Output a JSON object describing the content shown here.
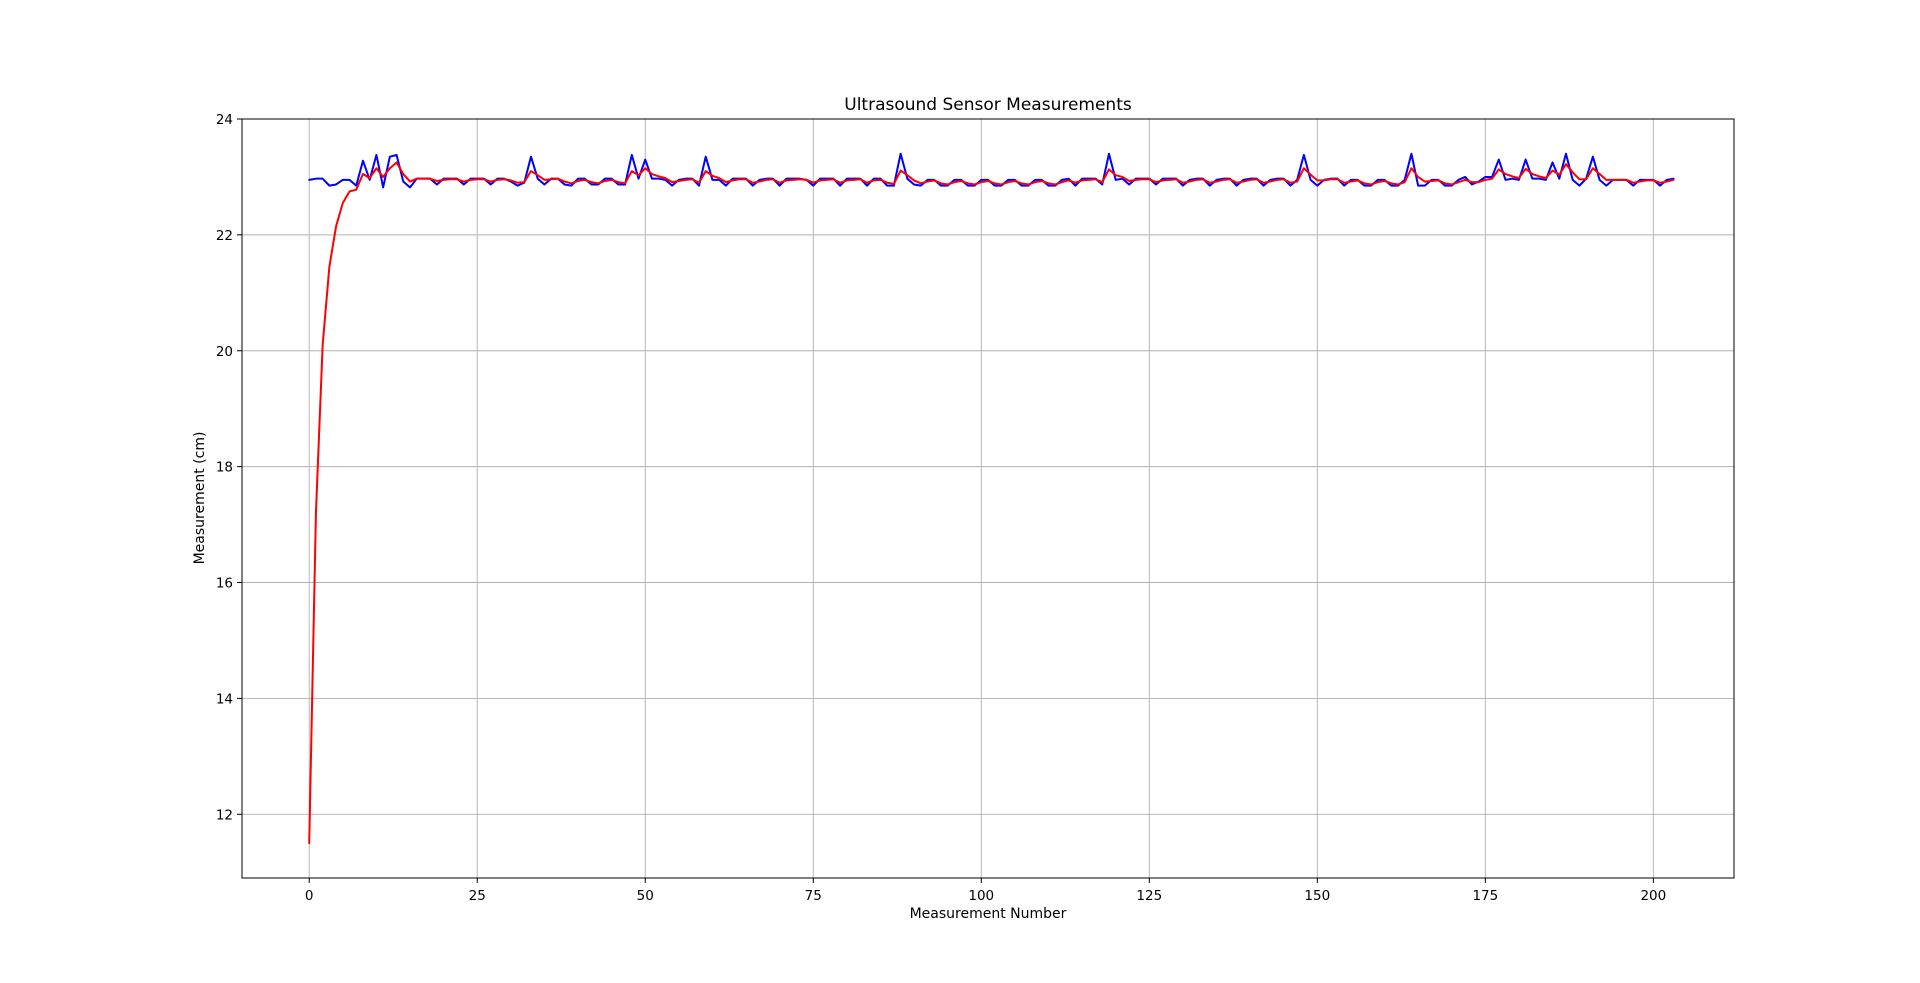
{
  "chart_data": {
    "type": "line",
    "title": "Ultrasound Sensor Measurements",
    "xlabel": "Measurement Number",
    "ylabel": "Measurement (cm)",
    "xlim": [
      -10,
      212
    ],
    "ylim": [
      10.9,
      24
    ],
    "xticks": [
      0,
      25,
      50,
      75,
      100,
      125,
      150,
      175,
      200
    ],
    "yticks": [
      12,
      14,
      16,
      18,
      20,
      22,
      24
    ],
    "grid": true,
    "legend": "none",
    "x_start": 0,
    "series": [
      {
        "color": "#0000ff",
        "values": [
          22.95,
          22.97,
          22.97,
          22.85,
          22.87,
          22.95,
          22.95,
          22.85,
          23.28,
          22.95,
          23.38,
          22.82,
          23.35,
          23.38,
          22.92,
          22.82,
          22.97,
          22.97,
          22.97,
          22.87,
          22.97,
          22.97,
          22.97,
          22.87,
          22.97,
          22.97,
          22.97,
          22.87,
          22.97,
          22.97,
          22.92,
          22.85,
          22.9,
          23.35,
          22.97,
          22.87,
          22.97,
          22.97,
          22.87,
          22.85,
          22.97,
          22.97,
          22.87,
          22.87,
          22.97,
          22.97,
          22.87,
          22.87,
          23.38,
          22.97,
          23.3,
          22.97,
          22.97,
          22.95,
          22.85,
          22.95,
          22.97,
          22.97,
          22.85,
          23.35,
          22.95,
          22.95,
          22.85,
          22.97,
          22.97,
          22.97,
          22.85,
          22.95,
          22.97,
          22.97,
          22.85,
          22.97,
          22.97,
          22.97,
          22.95,
          22.85,
          22.97,
          22.97,
          22.97,
          22.85,
          22.97,
          22.97,
          22.97,
          22.85,
          22.97,
          22.97,
          22.85,
          22.85,
          23.4,
          22.97,
          22.87,
          22.85,
          22.95,
          22.95,
          22.85,
          22.85,
          22.95,
          22.95,
          22.85,
          22.85,
          22.95,
          22.95,
          22.85,
          22.85,
          22.95,
          22.95,
          22.85,
          22.85,
          22.95,
          22.95,
          22.85,
          22.85,
          22.95,
          22.97,
          22.85,
          22.97,
          22.97,
          22.97,
          22.87,
          23.4,
          22.95,
          22.97,
          22.87,
          22.97,
          22.97,
          22.97,
          22.87,
          22.97,
          22.97,
          22.97,
          22.85,
          22.95,
          22.97,
          22.97,
          22.85,
          22.95,
          22.97,
          22.97,
          22.85,
          22.95,
          22.97,
          22.97,
          22.85,
          22.95,
          22.97,
          22.97,
          22.85,
          22.95,
          23.38,
          22.95,
          22.85,
          22.95,
          22.97,
          22.97,
          22.85,
          22.95,
          22.95,
          22.85,
          22.85,
          22.95,
          22.95,
          22.85,
          22.85,
          22.95,
          23.4,
          22.85,
          22.85,
          22.95,
          22.95,
          22.85,
          22.85,
          22.95,
          23.0,
          22.87,
          22.92,
          23.0,
          23.0,
          23.3,
          22.95,
          22.97,
          22.95,
          23.3,
          22.97,
          22.97,
          22.95,
          23.25,
          22.97,
          23.4,
          22.95,
          22.85,
          22.97,
          23.35,
          22.95,
          22.85,
          22.95,
          22.95,
          22.95,
          22.85,
          22.95,
          22.95,
          22.95,
          22.85,
          22.95,
          22.97
        ]
      },
      {
        "color": "#ff0000",
        "values": [
          11.5,
          17.2,
          20.1,
          21.45,
          22.15,
          22.55,
          22.75,
          22.78,
          23.05,
          22.98,
          23.15,
          23.0,
          23.15,
          23.25,
          23.05,
          22.92,
          22.97,
          22.97,
          22.97,
          22.93,
          22.95,
          22.96,
          22.96,
          22.92,
          22.95,
          22.96,
          22.96,
          22.92,
          22.95,
          22.96,
          22.94,
          22.9,
          22.91,
          23.1,
          23.03,
          22.95,
          22.96,
          22.97,
          22.92,
          22.89,
          22.93,
          22.95,
          22.91,
          22.89,
          22.93,
          22.95,
          22.91,
          22.89,
          23.1,
          23.03,
          23.15,
          23.05,
          23.01,
          22.98,
          22.91,
          22.93,
          22.95,
          22.96,
          22.9,
          23.1,
          23.02,
          22.98,
          22.91,
          22.94,
          22.96,
          22.96,
          22.9,
          22.92,
          22.95,
          22.96,
          22.9,
          22.94,
          22.95,
          22.96,
          22.95,
          22.9,
          22.94,
          22.95,
          22.96,
          22.9,
          22.94,
          22.95,
          22.96,
          22.9,
          22.94,
          22.95,
          22.9,
          22.88,
          23.11,
          23.03,
          22.94,
          22.89,
          22.92,
          22.94,
          22.89,
          22.87,
          22.91,
          22.93,
          22.89,
          22.87,
          22.91,
          22.93,
          22.89,
          22.87,
          22.91,
          22.93,
          22.89,
          22.87,
          22.91,
          22.93,
          22.89,
          22.87,
          22.91,
          22.94,
          22.9,
          22.94,
          22.95,
          22.96,
          22.91,
          23.13,
          23.03,
          23.0,
          22.93,
          22.95,
          22.96,
          22.96,
          22.91,
          22.94,
          22.95,
          22.96,
          22.9,
          22.92,
          22.95,
          22.96,
          22.9,
          22.92,
          22.95,
          22.96,
          22.9,
          22.92,
          22.95,
          22.96,
          22.9,
          22.92,
          22.95,
          22.96,
          22.9,
          22.92,
          23.15,
          23.04,
          22.94,
          22.94,
          22.96,
          22.96,
          22.9,
          22.92,
          22.94,
          22.89,
          22.87,
          22.91,
          22.93,
          22.89,
          22.87,
          22.91,
          23.15,
          23.0,
          22.92,
          22.93,
          22.94,
          22.89,
          22.87,
          22.91,
          22.95,
          22.91,
          22.91,
          22.95,
          22.97,
          23.13,
          23.05,
          23.01,
          22.98,
          23.14,
          23.05,
          23.01,
          22.98,
          23.11,
          23.04,
          23.22,
          23.08,
          22.96,
          22.96,
          23.15,
          23.05,
          22.95,
          22.95,
          22.95,
          22.95,
          22.9,
          22.92,
          22.94,
          22.94,
          22.9,
          22.92,
          22.95
        ]
      }
    ]
  }
}
